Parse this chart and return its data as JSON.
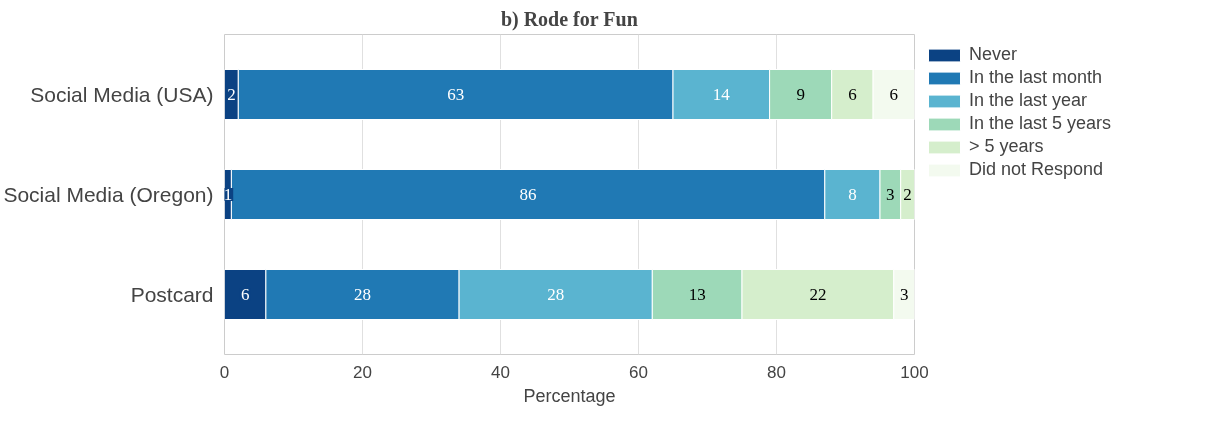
{
  "chart_data": {
    "type": "bar",
    "orientation": "horizontal",
    "stacked": true,
    "title": "b) Rode for Fun",
    "xlabel": "Percentage",
    "categories": [
      "Social Media (USA)",
      "Social Media (Oregon)",
      "Postcard"
    ],
    "series": [
      {
        "name": "Never",
        "color": "#0b4283",
        "values": [
          2,
          1,
          6
        ]
      },
      {
        "name": "In the last month",
        "color": "#2079b4",
        "values": [
          63,
          86,
          28
        ]
      },
      {
        "name": "In the last year",
        "color": "#5ab4d0",
        "values": [
          14,
          8,
          28
        ]
      },
      {
        "name": "In the last 5 years",
        "color": "#9dd9b8",
        "values": [
          9,
          3,
          13
        ]
      },
      {
        "name": "> 5 years",
        "color": "#d5eecc",
        "values": [
          6,
          2,
          22
        ]
      },
      {
        "name": "Did not Respond",
        "color": "#f3faef",
        "values": [
          6,
          null,
          3
        ]
      }
    ],
    "data_labels": true,
    "xlim": [
      0,
      100
    ],
    "xticks": [
      0,
      20,
      40,
      60,
      80,
      100
    ],
    "grid": "x",
    "legend": "top right"
  }
}
